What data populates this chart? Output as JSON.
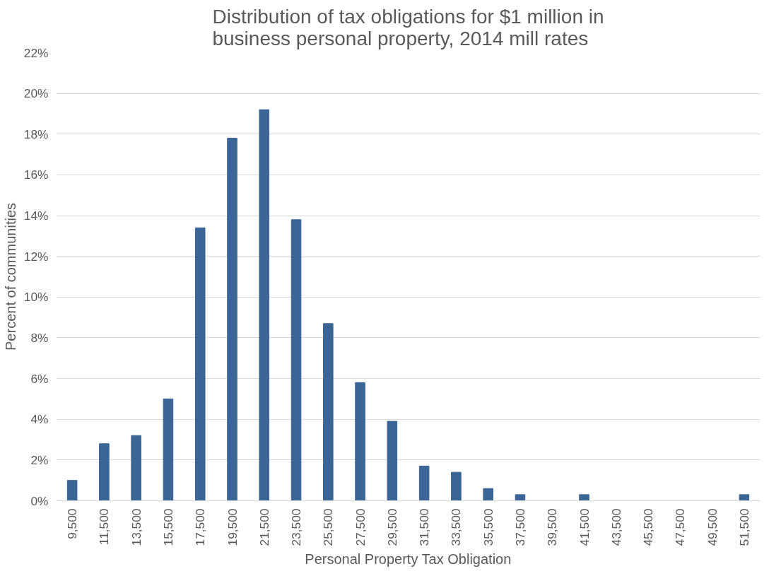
{
  "chart_data": {
    "type": "bar",
    "title": "Distribution of tax obligations for $1 million in business personal property, 2014 mill rates",
    "xlabel": "Personal Property Tax Obligation",
    "ylabel": "Percent of communities",
    "categories": [
      "9,500",
      "11,500",
      "13,500",
      "15,500",
      "17,500",
      "19,500",
      "21,500",
      "23,500",
      "25,500",
      "27,500",
      "29,500",
      "31,500",
      "33,500",
      "35,500",
      "37,500",
      "39,500",
      "41,500",
      "43,500",
      "45,500",
      "47,500",
      "49,500",
      "51,500"
    ],
    "values": [
      1.0,
      2.8,
      3.2,
      5.0,
      13.4,
      17.8,
      19.2,
      13.8,
      8.7,
      5.8,
      3.9,
      1.7,
      1.4,
      0.6,
      0.3,
      0,
      0.3,
      0,
      0,
      0,
      0,
      0.3
    ],
    "color": "#3a6595",
    "ylim": [
      0,
      22
    ],
    "yticks": [
      {
        "value": 0,
        "label": "0%"
      },
      {
        "value": 2,
        "label": "2%"
      },
      {
        "value": 4,
        "label": "4%"
      },
      {
        "value": 6,
        "label": "6%"
      },
      {
        "value": 8,
        "label": "8%"
      },
      {
        "value": 10,
        "label": "10%"
      },
      {
        "value": 12,
        "label": "12%"
      },
      {
        "value": 14,
        "label": "14%"
      },
      {
        "value": 16,
        "label": "16%"
      },
      {
        "value": 18,
        "label": "18%"
      },
      {
        "value": 20,
        "label": "20%"
      },
      {
        "value": 22,
        "label": "22%"
      }
    ],
    "grid": "y"
  }
}
